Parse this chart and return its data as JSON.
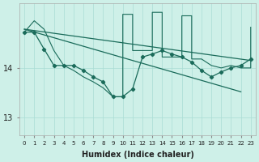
{
  "xlabel": "Humidex (Indice chaleur)",
  "bg_color": "#cef0e8",
  "line_color": "#1a6b5a",
  "grid_color": "#aaddd5",
  "ylim": [
    12.65,
    15.3
  ],
  "xlim": [
    -0.5,
    23.5
  ],
  "yticks": [
    13,
    14
  ],
  "xticks": [
    0,
    1,
    2,
    3,
    4,
    5,
    6,
    7,
    8,
    9,
    10,
    11,
    12,
    13,
    14,
    15,
    16,
    17,
    18,
    19,
    20,
    21,
    22,
    23
  ],
  "upper_line_x": [
    0,
    23
  ],
  "upper_line_y": [
    14.78,
    14.15
  ],
  "lower_line_x": [
    0,
    22
  ],
  "lower_line_y": [
    14.78,
    13.52
  ],
  "zigzag_x": [
    0,
    1,
    2,
    3,
    4,
    5,
    6,
    7,
    8,
    9,
    10,
    10,
    11,
    11,
    12,
    13,
    13,
    14,
    14,
    15,
    16,
    16,
    17,
    17,
    18,
    19,
    20,
    21,
    22,
    23,
    23
  ],
  "zigzag_y": [
    14.72,
    14.95,
    14.78,
    14.35,
    14.05,
    13.95,
    13.82,
    13.72,
    13.6,
    13.42,
    13.42,
    15.08,
    15.08,
    14.35,
    14.35,
    14.35,
    15.12,
    15.12,
    14.22,
    14.22,
    14.22,
    15.05,
    15.05,
    14.18,
    14.18,
    14.05,
    14.0,
    14.05,
    14.0,
    14.0,
    14.82
  ],
  "marker_line_x": [
    0,
    1,
    2,
    3,
    4,
    5,
    6,
    7,
    8,
    9,
    10,
    11,
    12,
    13,
    14,
    15,
    16,
    17,
    18,
    19,
    20,
    21,
    22,
    23
  ],
  "marker_line_y": [
    14.72,
    14.72,
    14.38,
    14.05,
    14.05,
    14.05,
    13.95,
    13.82,
    13.72,
    13.42,
    13.42,
    13.58,
    14.22,
    14.28,
    14.35,
    14.28,
    14.22,
    14.12,
    13.95,
    13.82,
    13.92,
    14.0,
    14.05,
    14.18
  ]
}
